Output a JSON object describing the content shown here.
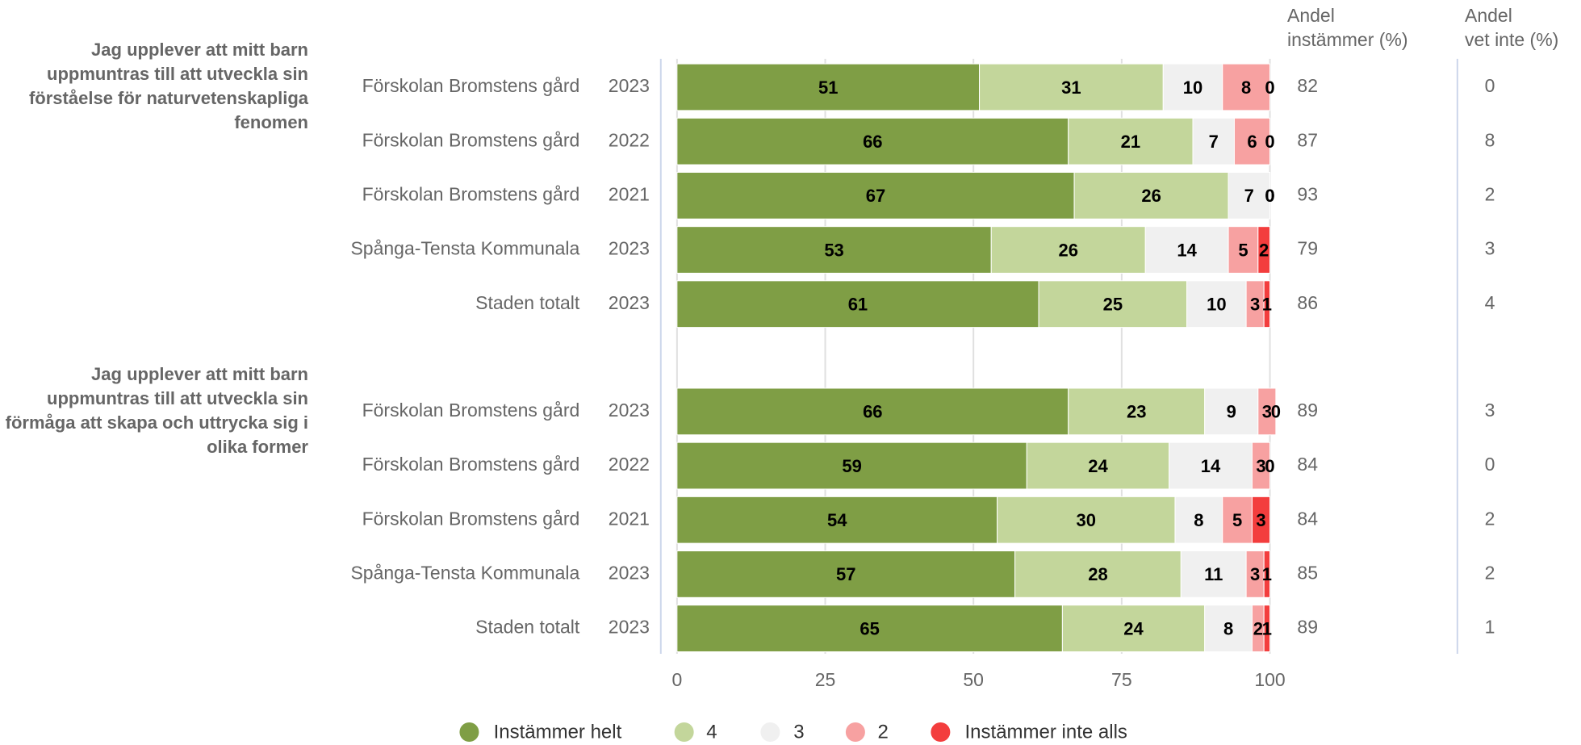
{
  "chart_data": {
    "type": "stacked-bar-horizontal",
    "groups": [
      "Jag upplever att mitt barn uppmuntras till att utveckla sin förståelse för naturvetenskapliga fenomen",
      "Jag upplever att mitt barn uppmuntras till att utveckla sin förmåga att skapa och uttrycka sig i olika former"
    ],
    "categories": [
      "Förskolan Bromstens gård",
      "Förskolan Bromstens gård",
      "Förskolan Bromstens gård",
      "Spånga-Tensta Kommunala",
      "Staden totalt",
      "Förskolan Bromstens gård",
      "Förskolan Bromstens gård",
      "Förskolan Bromstens gård",
      "Spånga-Tensta Kommunala",
      "Staden totalt"
    ],
    "years": [
      "2023",
      "2022",
      "2021",
      "2023",
      "2023",
      "2023",
      "2022",
      "2021",
      "2023",
      "2023"
    ],
    "series": [
      {
        "name": "Instämmer helt",
        "color": "#7f9e45",
        "values": [
          51,
          66,
          67,
          53,
          61,
          66,
          59,
          54,
          57,
          65
        ]
      },
      {
        "name": "4",
        "color": "#c3d69b",
        "values": [
          31,
          21,
          26,
          26,
          25,
          23,
          24,
          30,
          28,
          24
        ]
      },
      {
        "name": "3",
        "color": "#f0f0f0",
        "values": [
          10,
          7,
          7,
          14,
          10,
          9,
          14,
          8,
          11,
          8
        ]
      },
      {
        "name": "2",
        "color": "#f7a1a1",
        "values": [
          8,
          6,
          0,
          5,
          3,
          3,
          3,
          5,
          3,
          2
        ]
      },
      {
        "name": "Instämmer inte alls",
        "color": "#f33d3d",
        "values": [
          0,
          0,
          0,
          2,
          1,
          0,
          0,
          3,
          1,
          1
        ]
      }
    ],
    "columns": [
      {
        "title": "Andel\ninstämmer (%)",
        "values": [
          82,
          87,
          93,
          79,
          86,
          89,
          84,
          84,
          85,
          89
        ]
      },
      {
        "title": "Andel\nvet inte (%)",
        "values": [
          0,
          8,
          2,
          3,
          4,
          3,
          0,
          2,
          2,
          1
        ]
      }
    ],
    "xlim": [
      0,
      100
    ],
    "xticks": [
      0,
      25,
      50,
      75,
      100
    ],
    "grid": true,
    "legend": "bottom"
  }
}
